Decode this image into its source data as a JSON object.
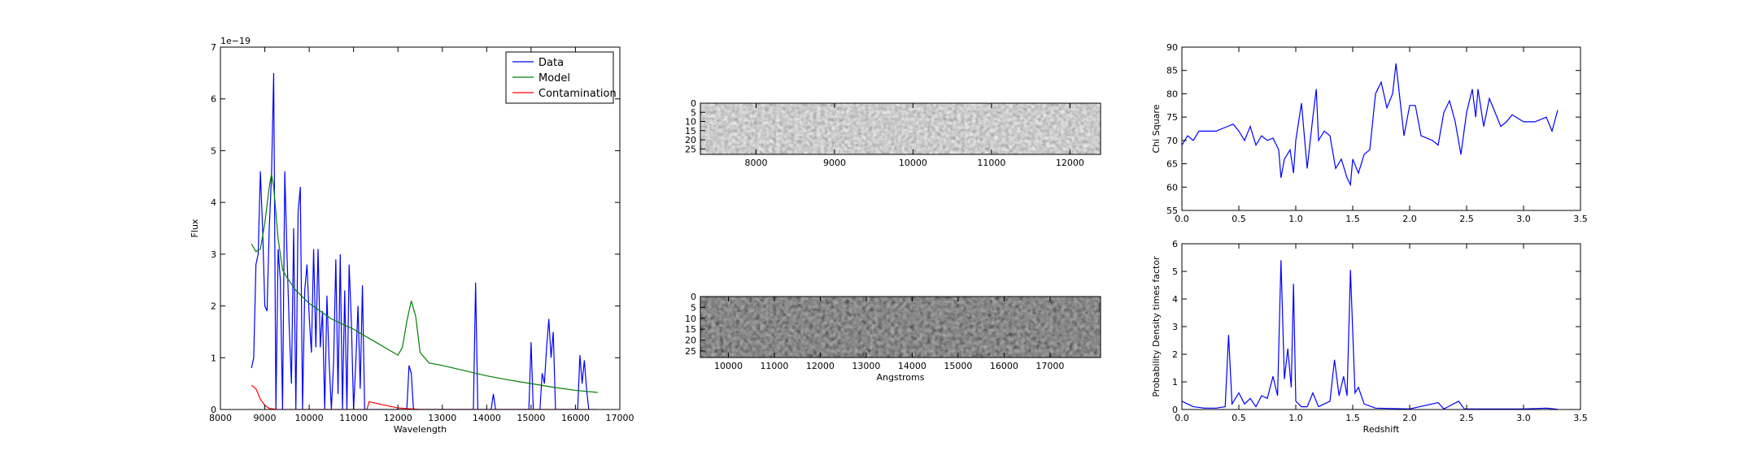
{
  "chart_data": [
    {
      "type": "line",
      "offset_text": "1e−19",
      "xlabel": "Wavelength",
      "ylabel": "Flux",
      "xlim": [
        8000,
        17000
      ],
      "xticks": [
        8000,
        9000,
        10000,
        11000,
        12000,
        13000,
        14000,
        15000,
        16000,
        17000
      ],
      "ylim": [
        0,
        7
      ],
      "yticks": [
        0,
        1,
        2,
        3,
        4,
        5,
        6,
        7
      ],
      "legend": "upper right",
      "series": [
        {
          "name": "Data",
          "color": "#0000ff",
          "x": [
            8700,
            8750,
            8800,
            8850,
            8900,
            8950,
            9000,
            9050,
            9100,
            9150,
            9200,
            9250,
            9300,
            9350,
            9400,
            9450,
            9500,
            9550,
            9600,
            9650,
            9700,
            9750,
            9800,
            9850,
            9900,
            9950,
            10000,
            10050,
            10100,
            10150,
            10200,
            10250,
            10300,
            10350,
            10400,
            10450,
            10500,
            10550,
            10600,
            10650,
            10700,
            10750,
            10800,
            10850,
            10900,
            10950,
            11000,
            11050,
            11100,
            11150,
            11200,
            11250,
            11300,
            12200,
            12250,
            12300,
            12350,
            13700,
            13750,
            13800,
            14100,
            14150,
            14200,
            14950,
            15000,
            15050,
            15200,
            15250,
            15300,
            15350,
            15400,
            15450,
            15500,
            15550,
            16050,
            16100,
            16150,
            16200,
            16250,
            16300
          ],
          "values": [
            0.8,
            1.0,
            2.8,
            3.0,
            4.6,
            3.5,
            2.0,
            1.9,
            3.5,
            4.5,
            6.5,
            0,
            3.1,
            2.5,
            0,
            4.6,
            3.0,
            1.6,
            0.5,
            3.5,
            0,
            3.8,
            4.3,
            0,
            2.3,
            2.8,
            1.8,
            1.1,
            3.1,
            1.2,
            3.1,
            1.2,
            1.9,
            0,
            2.2,
            0.9,
            0,
            0.9,
            2.9,
            0.3,
            3.0,
            0,
            2.3,
            0,
            2.8,
            1.7,
            0,
            0.9,
            2.0,
            0.4,
            2.4,
            0,
            0,
            0,
            0.85,
            0.7,
            0,
            0,
            2.45,
            0,
            0,
            0.3,
            0,
            0,
            1.3,
            0,
            0,
            0.7,
            0.5,
            1.2,
            1.75,
            1.0,
            1.5,
            0,
            0,
            1.05,
            0.5,
            0.95,
            0.4,
            0
          ]
        },
        {
          "name": "Model",
          "color": "#008000",
          "x": [
            8700,
            8800,
            8900,
            9000,
            9100,
            9150,
            9200,
            9300,
            9400,
            9500,
            9700,
            10000,
            10500,
            11000,
            11500,
            11800,
            12000,
            12100,
            12200,
            12300,
            12400,
            12500,
            12700,
            13000,
            13500,
            14000,
            14500,
            15000,
            15500,
            16000,
            16500
          ],
          "values": [
            3.2,
            3.05,
            3.1,
            3.6,
            4.3,
            4.55,
            4.3,
            3.3,
            2.7,
            2.55,
            2.3,
            2.05,
            1.75,
            1.55,
            1.3,
            1.15,
            1.05,
            1.2,
            1.7,
            2.1,
            1.8,
            1.1,
            0.9,
            0.85,
            0.75,
            0.65,
            0.57,
            0.5,
            0.43,
            0.37,
            0.33
          ]
        },
        {
          "name": "Contamination",
          "color": "#ff0000",
          "x": [
            8700,
            8800,
            8900,
            9000,
            9100,
            9300,
            11300,
            11350,
            11500,
            12000,
            12500,
            16500
          ],
          "values": [
            0.47,
            0.4,
            0.2,
            0.08,
            0.02,
            0,
            0,
            0.15,
            0.12,
            0.03,
            0,
            0
          ]
        }
      ]
    },
    {
      "type": "image",
      "xlim": [
        7290,
        12390
      ],
      "xticks": [
        8000,
        9000,
        10000,
        11000,
        12000
      ],
      "ylim": [
        28,
        0
      ],
      "yticks": [
        0,
        5,
        10,
        15,
        20,
        25
      ]
    },
    {
      "type": "image",
      "xlabel": "Angstroms",
      "xlim": [
        9390,
        18100
      ],
      "xticks": [
        10000,
        11000,
        12000,
        13000,
        14000,
        15000,
        16000,
        17000
      ],
      "ylim": [
        28,
        0
      ],
      "yticks": [
        0,
        5,
        10,
        15,
        20,
        25
      ]
    },
    {
      "type": "line",
      "ylabel": "Chi Square",
      "xlim": [
        0,
        3.5
      ],
      "xticks": [
        {
          "value": 0,
          "label": "0.0"
        },
        0.5,
        {
          "value": 1,
          "label": "1.0"
        },
        1.5,
        {
          "value": 2,
          "label": "2.0"
        },
        2.5,
        {
          "value": 3,
          "label": "3.0"
        },
        3.5
      ],
      "ylim": [
        55,
        90
      ],
      "yticks": [
        55,
        60,
        65,
        70,
        75,
        80,
        85,
        90
      ],
      "series": [
        {
          "color": "#0000ff",
          "x": [
            0,
            0.05,
            0.1,
            0.15,
            0.2,
            0.3,
            0.4,
            0.45,
            0.5,
            0.55,
            0.6,
            0.65,
            0.7,
            0.75,
            0.8,
            0.85,
            0.87,
            0.9,
            0.95,
            0.98,
            1.0,
            1.05,
            1.1,
            1.15,
            1.18,
            1.2,
            1.25,
            1.3,
            1.35,
            1.4,
            1.45,
            1.48,
            1.5,
            1.55,
            1.6,
            1.65,
            1.7,
            1.75,
            1.8,
            1.85,
            1.88,
            1.95,
            2.0,
            2.05,
            2.1,
            2.2,
            2.25,
            2.3,
            2.35,
            2.4,
            2.45,
            2.5,
            2.55,
            2.58,
            2.6,
            2.65,
            2.7,
            2.75,
            2.8,
            2.85,
            2.9,
            3.0,
            3.1,
            3.2,
            3.25,
            3.3
          ],
          "values": [
            69,
            71,
            70,
            72,
            72,
            72,
            73,
            73.5,
            72,
            70,
            73,
            69,
            71,
            70,
            70.5,
            68,
            62,
            66,
            68,
            63,
            70,
            78,
            64,
            75,
            81,
            70,
            72,
            71,
            64,
            66,
            62,
            60.5,
            66,
            63,
            67,
            68,
            80,
            82.5,
            77,
            80,
            86.5,
            71,
            77.5,
            77.5,
            71,
            70,
            69,
            76,
            78.5,
            74,
            67,
            76,
            81,
            75,
            81,
            73,
            79,
            76,
            73,
            74,
            75.5,
            74,
            74,
            75,
            72,
            76.5
          ]
        }
      ]
    },
    {
      "type": "line",
      "xlabel": "Redshift",
      "ylabel": "Probability Density times factor",
      "xlim": [
        0,
        3.5
      ],
      "xticks": [
        {
          "value": 0,
          "label": "0.0"
        },
        0.5,
        {
          "value": 1,
          "label": "1.0"
        },
        1.5,
        {
          "value": 2,
          "label": "2.0"
        },
        2.5,
        {
          "value": 3,
          "label": "3.0"
        },
        3.5
      ],
      "ylim": [
        0,
        6
      ],
      "yticks": [
        0,
        1,
        2,
        3,
        4,
        5,
        6
      ],
      "series": [
        {
          "color": "#0000ff",
          "x": [
            0,
            0.05,
            0.1,
            0.2,
            0.3,
            0.38,
            0.41,
            0.44,
            0.5,
            0.55,
            0.6,
            0.65,
            0.7,
            0.75,
            0.8,
            0.84,
            0.87,
            0.9,
            0.93,
            0.96,
            0.98,
            1.0,
            1.05,
            1.1,
            1.15,
            1.2,
            1.3,
            1.34,
            1.38,
            1.42,
            1.45,
            1.48,
            1.52,
            1.55,
            1.6,
            1.7,
            2.0,
            2.25,
            2.3,
            2.43,
            2.48,
            3.0,
            3.2,
            3.3
          ],
          "values": [
            0.3,
            0.2,
            0.1,
            0.05,
            0.05,
            0.1,
            2.7,
            0.2,
            0.6,
            0.2,
            0.4,
            0.1,
            0.5,
            0.4,
            1.2,
            0.5,
            5.4,
            1.1,
            2.2,
            0.8,
            4.55,
            0.3,
            0.1,
            0.1,
            0.6,
            0.1,
            0.3,
            1.8,
            0.5,
            1.2,
            0.5,
            5.05,
            0.6,
            0.8,
            0.2,
            0.05,
            0.02,
            0.25,
            0.02,
            0.3,
            0.02,
            0.02,
            0.05,
            0.01
          ]
        }
      ]
    }
  ]
}
